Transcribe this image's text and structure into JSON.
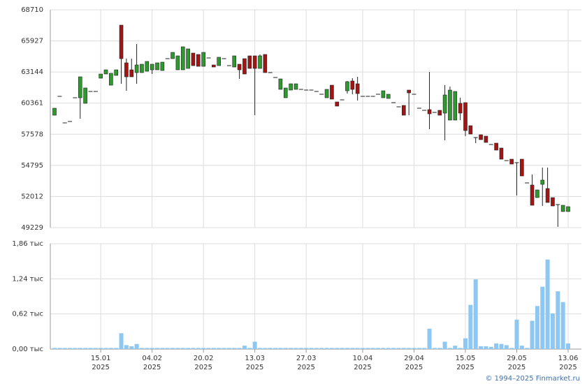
{
  "chart_data": [
    {
      "type": "candlestick",
      "open": [
        59281,
        60967,
        58594,
        58719,
        60842,
        60842,
        60343,
        61404,
        61404,
        62591,
        62965,
        61966,
        62840,
        67336,
        63964,
        63340,
        63090,
        63090,
        63215,
        63340,
        63340,
        63278,
        64339,
        64339,
        63340,
        63340,
        63465,
        64839,
        64714,
        63652,
        64402,
        63777,
        63715,
        64339,
        63715,
        63590,
        63840,
        64339,
        64589,
        64589,
        63465,
        64714,
        63090,
        62653,
        61592,
        60842,
        61529,
        61592,
        61592,
        61529,
        61529,
        61404,
        61155,
        60842,
        61966,
        60468,
        60655,
        61467,
        62341,
        62091,
        60967,
        60967,
        60967,
        61155,
        60842,
        60780,
        60406,
        60031,
        60156,
        61529,
        61155,
        59906,
        59719,
        59781,
        59531,
        59719,
        59469,
        58844,
        58844,
        60343,
        60406,
        58345,
        57283,
        57533,
        57408,
        56659,
        56784,
        56347,
        55223,
        55348,
        55035,
        55348,
        53225,
        53037,
        51914,
        53100,
        52725,
        51914,
        51289,
        50665,
        50665
      ],
      "high": [
        59906,
        60967,
        58594,
        58719,
        60842,
        62716,
        61717,
        61404,
        61404,
        62965,
        63340,
        63028,
        63340,
        67336,
        64339,
        64339,
        65650,
        63840,
        64090,
        63840,
        63964,
        64027,
        64339,
        64901,
        64589,
        65400,
        65213,
        64839,
        64714,
        64901,
        64402,
        63777,
        64464,
        64339,
        63715,
        64589,
        63840,
        64339,
        64589,
        64589,
        64714,
        64714,
        63090,
        62653,
        62528,
        61717,
        62091,
        62091,
        61592,
        61529,
        61529,
        61404,
        61155,
        61592,
        61966,
        60468,
        60655,
        62341,
        62591,
        62716,
        60967,
        60967,
        60967,
        61155,
        61467,
        61155,
        60406,
        60031,
        60156,
        61529,
        61155,
        59906,
        59719,
        63153,
        59531,
        59719,
        61966,
        61841,
        61404,
        60842,
        60406,
        58345,
        57283,
        57533,
        57408,
        56659,
        56784,
        56347,
        55223,
        55348,
        55035,
        55348,
        53225,
        53974,
        52600,
        54598,
        54598,
        51914,
        51289,
        51227,
        51102
      ],
      "low": [
        59281,
        60967,
        58594,
        58719,
        60842,
        58969,
        60343,
        61404,
        61404,
        62591,
        62965,
        61966,
        62840,
        62091,
        61467,
        62716,
        62091,
        63090,
        63215,
        62965,
        63340,
        63278,
        64339,
        64339,
        63340,
        63340,
        63465,
        63715,
        63652,
        63652,
        64402,
        63590,
        63715,
        64339,
        63715,
        63590,
        62528,
        62965,
        63465,
        59281,
        63465,
        63090,
        63090,
        62653,
        61592,
        60842,
        61529,
        61592,
        61592,
        61529,
        61529,
        61404,
        61155,
        60842,
        60718,
        60093,
        60655,
        61217,
        61155,
        60593,
        60967,
        60967,
        60967,
        61155,
        60842,
        60780,
        60406,
        60031,
        59281,
        59281,
        61155,
        59906,
        59719,
        58033,
        59531,
        59281,
        57034,
        58844,
        58844,
        58844,
        57408,
        57596,
        56784,
        57096,
        56846,
        56659,
        56159,
        55348,
        55223,
        54911,
        52101,
        53849,
        53225,
        51227,
        51914,
        51164,
        51476,
        51164,
        49300,
        50665,
        50665
      ],
      "close": [
        59906,
        60967,
        58594,
        58719,
        60842,
        62716,
        61717,
        61404,
        61404,
        62965,
        63340,
        63028,
        63340,
        64339,
        62716,
        62716,
        63777,
        63840,
        64090,
        63840,
        63964,
        64027,
        64339,
        64901,
        64589,
        65400,
        65213,
        63715,
        63652,
        64901,
        64402,
        63590,
        64464,
        64339,
        63715,
        64589,
        63340,
        62965,
        63465,
        63465,
        64589,
        63090,
        63090,
        62653,
        62528,
        61717,
        62091,
        62091,
        61592,
        61529,
        61529,
        61404,
        61155,
        61592,
        60718,
        60093,
        60655,
        62279,
        61592,
        61217,
        60967,
        60967,
        60967,
        61155,
        61467,
        61155,
        60406,
        60031,
        59281,
        61279,
        61155,
        59906,
        59719,
        59406,
        59531,
        59281,
        61092,
        61529,
        61404,
        59469,
        57908,
        57596,
        57283,
        57096,
        56846,
        56659,
        56159,
        55348,
        55223,
        54911,
        55035,
        53849,
        53225,
        51227,
        52600,
        53474,
        51476,
        51164,
        51289,
        51227,
        51102
      ],
      "up_color": "#2e9a2e",
      "down_color": "#a31515",
      "ylim": [
        49229,
        68710
      ],
      "yticks": [
        49229,
        52012,
        54795,
        57578,
        60361,
        63144,
        65927,
        68710
      ],
      "grid": true
    },
    {
      "type": "bar",
      "values": [
        0.02,
        0.02,
        0.02,
        0.02,
        0.02,
        0.02,
        0.02,
        0.02,
        0.02,
        0.02,
        0.02,
        0.02,
        0.02,
        0.28,
        0.07,
        0.05,
        0.09,
        0.02,
        0.02,
        0.02,
        0.02,
        0.02,
        0.02,
        0.02,
        0.02,
        0.02,
        0.02,
        0.02,
        0.02,
        0.02,
        0.02,
        0.02,
        0.02,
        0.02,
        0.02,
        0.02,
        0.02,
        0.06,
        0.02,
        0.13,
        0.02,
        0.02,
        0.02,
        0.02,
        0.02,
        0.02,
        0.02,
        0.02,
        0.02,
        0.02,
        0.02,
        0.02,
        0.02,
        0.02,
        0.02,
        0.02,
        0.02,
        0.02,
        0.02,
        0.02,
        0.02,
        0.02,
        0.02,
        0.02,
        0.02,
        0.02,
        0.02,
        0.02,
        0.02,
        0.02,
        0.02,
        0.02,
        0.02,
        0.36,
        0.02,
        0.02,
        0.13,
        0.02,
        0.06,
        0.02,
        0.19,
        0.78,
        1.23,
        0.05,
        0.05,
        0.04,
        0.1,
        0.09,
        0.07,
        0.02,
        0.52,
        0.06,
        0.02,
        0.5,
        0.76,
        1.1,
        1.58,
        0.63,
        1.02,
        0.83,
        0.1
      ],
      "color": "#8ec8f2",
      "ylim": [
        0,
        1.86
      ],
      "yticks": [
        {
          "value": 0,
          "label": "0,00 тыс"
        },
        {
          "value": 0.62,
          "label": "0,62 тыс"
        },
        {
          "value": 1.24,
          "label": "1,24 тыс"
        },
        {
          "value": 1.86,
          "label": "1,86 тыс"
        }
      ],
      "grid": true,
      "xticks": [
        {
          "value": 9,
          "label": "15.01",
          "year": "2025"
        },
        {
          "value": 19,
          "label": "04.02",
          "year": "2025"
        },
        {
          "value": 29,
          "label": "20.02",
          "year": "2025"
        },
        {
          "value": 39,
          "label": "13.03",
          "year": "2025"
        },
        {
          "value": 49,
          "label": "27.03",
          "year": "2025"
        },
        {
          "value": 60,
          "label": "10.04",
          "year": "2025"
        },
        {
          "value": 70,
          "label": "29.04",
          "year": "2025"
        },
        {
          "value": 80,
          "label": "15.05",
          "year": "2025"
        },
        {
          "value": 90,
          "label": "29.05",
          "year": "2025"
        },
        {
          "value": 100,
          "label": "13.06",
          "year": "2025"
        }
      ]
    }
  ],
  "footer": "© 1994–2025 Finmarket.ru"
}
